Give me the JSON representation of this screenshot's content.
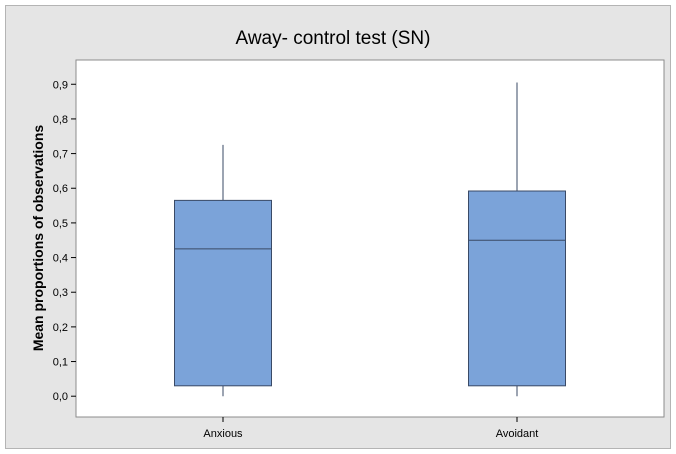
{
  "chart_data": {
    "type": "boxplot",
    "title": "Away- control test (SN)",
    "xlabel": "",
    "ylabel": "Mean proportions of observations",
    "categories": [
      "Anxious",
      "Avoidant"
    ],
    "boxes": [
      {
        "category": "Anxious",
        "min": 0.0,
        "q1": 0.03,
        "median": 0.425,
        "q3": 0.565,
        "max": 0.725
      },
      {
        "category": "Avoidant",
        "min": 0.0,
        "q1": 0.03,
        "median": 0.45,
        "q3": 0.592,
        "max": 0.905
      }
    ],
    "ylim": [
      -0.06,
      0.97
    ],
    "yticks": [
      0.0,
      0.1,
      0.2,
      0.3,
      0.4,
      0.5,
      0.6,
      0.7,
      0.8,
      0.9
    ],
    "ytick_labels": [
      "0,0",
      "0,1",
      "0,2",
      "0,3",
      "0,4",
      "0,5",
      "0,6",
      "0,7",
      "0,8",
      "0,9"
    ],
    "grid": false,
    "legend": "none",
    "colors": {
      "box_fill": "#7ba3d9",
      "box_stroke": "#3a4a66",
      "frame_bg": "#e5e5e5",
      "plot_bg": "#ffffff"
    }
  }
}
